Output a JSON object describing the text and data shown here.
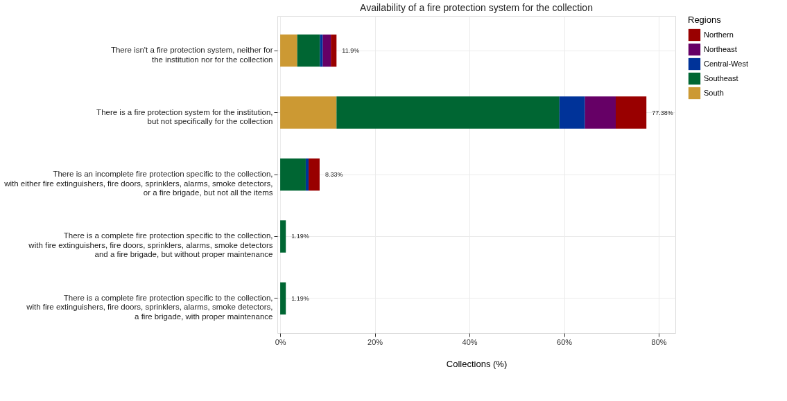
{
  "chart_data": {
    "type": "bar",
    "orientation": "horizontal",
    "stacked": true,
    "title": "Availability of a fire protection system for the collection",
    "xlabel": "Collections (%)",
    "legend_title": "Regions",
    "categories": [
      "There isn't a fire protection system, neither for\nthe institution nor for the collection",
      "There is a fire protection system for the institution,\nbut not specifically for the collection",
      "There is an incomplete fire protection specific to the collection,\nwith either fire extinguishers, fire doors, sprinklers, alarms, smoke detectors,\nor a fire brigade, but not all the items",
      "There is a complete fire protection specific to the collection,\nwith fire extinguishers, fire doors, sprinklers, alarms, smoke detectors\nand a fire brigade, but without proper maintenance",
      "There is a complete fire protection specific to the collection,\nwith fire extinguishers, fire doors, sprinklers, alarms, smoke detectors,\na fire brigade, with proper maintenance"
    ],
    "series": [
      {
        "name": "South",
        "color": "#cc9933",
        "values": [
          3.6,
          11.9,
          null,
          null,
          null
        ]
      },
      {
        "name": "Southeast",
        "color": "#006633",
        "values": [
          4.8,
          47.1,
          5.4,
          1.19,
          1.19
        ]
      },
      {
        "name": "Central-West",
        "color": "#003399",
        "values": [
          0.6,
          5.4,
          0.6,
          null,
          null
        ]
      },
      {
        "name": "Northeast",
        "color": "#660066",
        "values": [
          1.7,
          6.5,
          null,
          null,
          null
        ]
      },
      {
        "name": "Northern",
        "color": "#990000",
        "values": [
          1.2,
          6.48,
          2.33,
          null,
          null
        ]
      }
    ],
    "totals": [
      "11.9%",
      "77.38%",
      "8.33%",
      "1.19%",
      "1.19%"
    ],
    "xlim": [
      -0.6,
      83.5
    ],
    "xticks": [
      {
        "value": 0,
        "label": "0%"
      },
      {
        "value": 20,
        "label": "20%"
      },
      {
        "value": 40,
        "label": "40%"
      },
      {
        "value": 60,
        "label": "60%"
      },
      {
        "value": 80,
        "label": "80%"
      }
    ],
    "grid": true,
    "legend": "right"
  }
}
